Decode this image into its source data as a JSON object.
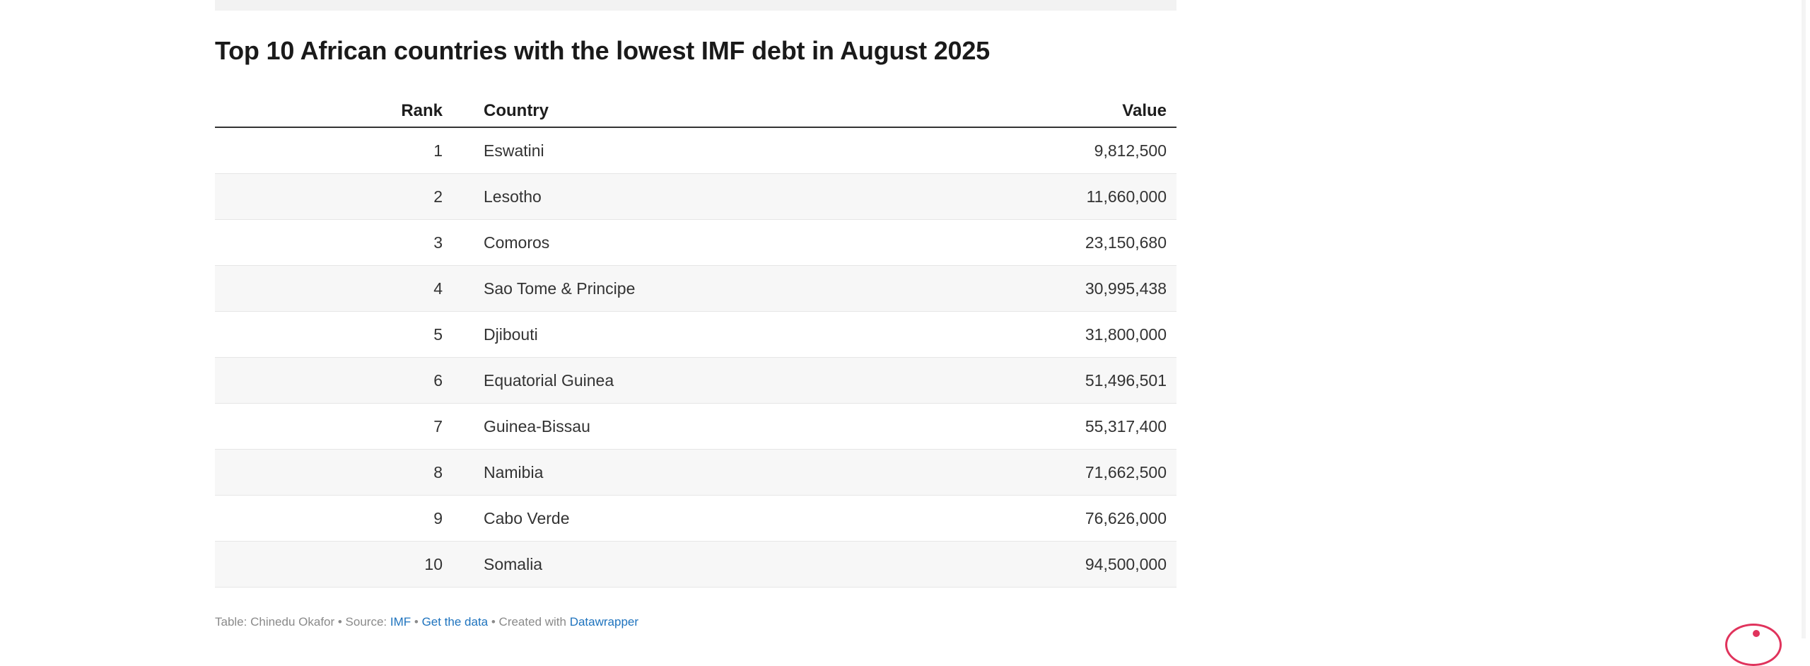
{
  "chart_data": {
    "type": "table",
    "title": "Top 10 African countries with the lowest IMF debt in August 2025",
    "columns": [
      "Rank",
      "Country",
      "Value"
    ],
    "rows": [
      {
        "rank": "1",
        "country": "Eswatini",
        "value": "9,812,500"
      },
      {
        "rank": "2",
        "country": "Lesotho",
        "value": "11,660,000"
      },
      {
        "rank": "3",
        "country": "Comoros",
        "value": "23,150,680"
      },
      {
        "rank": "4",
        "country": "Sao Tome & Principe",
        "value": "30,995,438"
      },
      {
        "rank": "5",
        "country": "Djibouti",
        "value": "31,800,000"
      },
      {
        "rank": "6",
        "country": "Equatorial Guinea",
        "value": "51,496,501"
      },
      {
        "rank": "7",
        "country": "Guinea-Bissau",
        "value": "55,317,400"
      },
      {
        "rank": "8",
        "country": "Namibia",
        "value": "71,662,500"
      },
      {
        "rank": "9",
        "country": "Cabo Verde",
        "value": "76,626,000"
      },
      {
        "rank": "10",
        "country": "Somalia",
        "value": "94,500,000"
      }
    ]
  },
  "footer": {
    "prefix": "Table: Chinedu Okafor • Source: ",
    "source_link": "IMF",
    "sep1": " • ",
    "get_data_link": "Get the data",
    "sep2": " • Created with ",
    "tool_link": "Datawrapper"
  },
  "colors": {
    "link": "#1e73be",
    "row_alt": "#f7f7f7",
    "badge": "#e0335c"
  }
}
